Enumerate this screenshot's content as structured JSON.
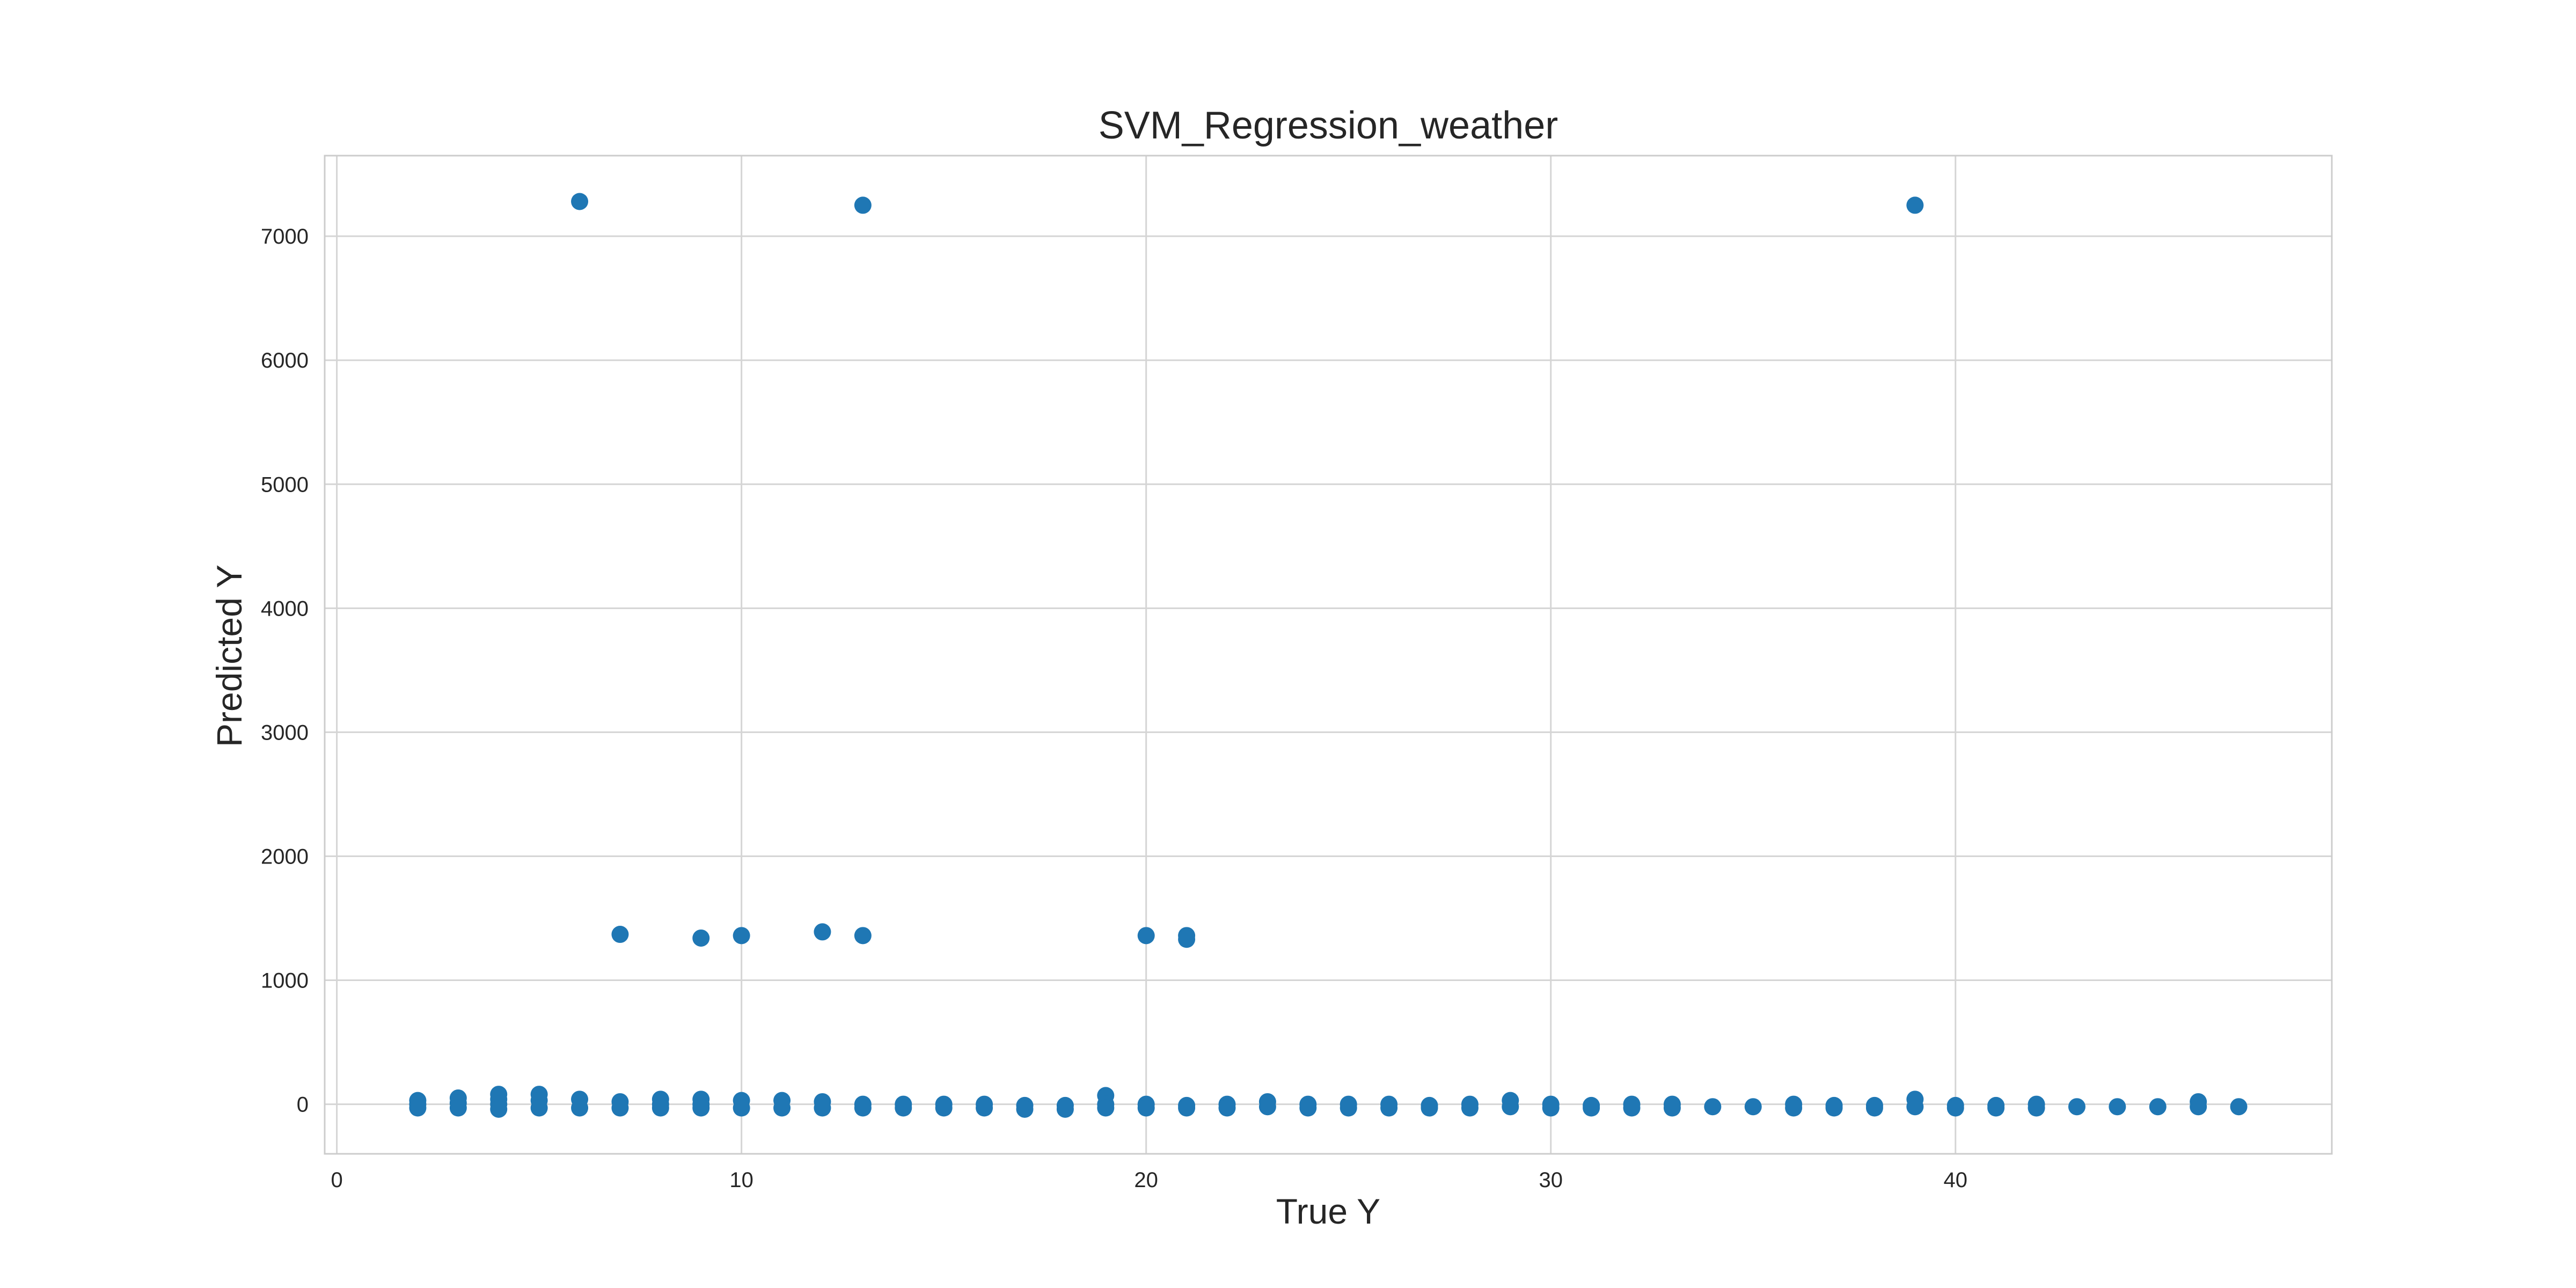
{
  "chart_data": {
    "type": "scatter",
    "title": "SVM_Regression_weather",
    "xlabel": "True Y",
    "ylabel": "Predicted Y",
    "xlim": [
      -0.3,
      49.3
    ],
    "ylim": [
      -400,
      7650
    ],
    "xticks": [
      0,
      10,
      20,
      30,
      40
    ],
    "yticks": [
      0,
      1000,
      2000,
      3000,
      4000,
      5000,
      6000,
      7000
    ],
    "grid": true,
    "colors": {
      "point": "#1f77b4",
      "grid": "#d5d5d5",
      "frame": "#cccccc",
      "text": "#262626"
    },
    "series": [
      {
        "points": [
          [
            2,
            30
          ],
          [
            2,
            0
          ],
          [
            2,
            -30
          ],
          [
            3,
            50
          ],
          [
            3,
            10
          ],
          [
            3,
            -30
          ],
          [
            4,
            80
          ],
          [
            4,
            40
          ],
          [
            4,
            0
          ],
          [
            4,
            -40
          ],
          [
            5,
            80
          ],
          [
            5,
            30
          ],
          [
            5,
            -30
          ],
          [
            6,
            7280
          ],
          [
            6,
            40
          ],
          [
            6,
            -30
          ],
          [
            7,
            1370
          ],
          [
            7,
            20
          ],
          [
            7,
            -30
          ],
          [
            8,
            40
          ],
          [
            8,
            0
          ],
          [
            8,
            -30
          ],
          [
            9,
            1340
          ],
          [
            9,
            40
          ],
          [
            9,
            0
          ],
          [
            9,
            -30
          ],
          [
            10,
            1360
          ],
          [
            10,
            30
          ],
          [
            10,
            -30
          ],
          [
            11,
            30
          ],
          [
            11,
            -30
          ],
          [
            12,
            1390
          ],
          [
            12,
            20
          ],
          [
            12,
            -30
          ],
          [
            13,
            7250
          ],
          [
            13,
            1360
          ],
          [
            13,
            0
          ],
          [
            13,
            -30
          ],
          [
            14,
            0
          ],
          [
            14,
            -30
          ],
          [
            15,
            0
          ],
          [
            15,
            -30
          ],
          [
            16,
            0
          ],
          [
            16,
            -30
          ],
          [
            17,
            -10
          ],
          [
            17,
            -40
          ],
          [
            18,
            -10
          ],
          [
            18,
            -40
          ],
          [
            19,
            70
          ],
          [
            19,
            0
          ],
          [
            19,
            -30
          ],
          [
            20,
            1360
          ],
          [
            20,
            0
          ],
          [
            20,
            -30
          ],
          [
            21,
            1360
          ],
          [
            21,
            1330
          ],
          [
            21,
            -10
          ],
          [
            21,
            -30
          ],
          [
            22,
            0
          ],
          [
            22,
            -30
          ],
          [
            23,
            20
          ],
          [
            23,
            -20
          ],
          [
            24,
            0
          ],
          [
            24,
            -30
          ],
          [
            25,
            0
          ],
          [
            25,
            -30
          ],
          [
            26,
            0
          ],
          [
            26,
            -30
          ],
          [
            27,
            -10
          ],
          [
            27,
            -30
          ],
          [
            28,
            0
          ],
          [
            28,
            -30
          ],
          [
            29,
            30
          ],
          [
            29,
            -20
          ],
          [
            30,
            0
          ],
          [
            30,
            -30
          ],
          [
            31,
            -10
          ],
          [
            31,
            -30
          ],
          [
            32,
            0
          ],
          [
            32,
            -30
          ],
          [
            33,
            0
          ],
          [
            33,
            -30
          ],
          [
            34,
            -20
          ],
          [
            35,
            -20
          ],
          [
            36,
            0
          ],
          [
            36,
            -30
          ],
          [
            37,
            -10
          ],
          [
            37,
            -30
          ],
          [
            38,
            -10
          ],
          [
            38,
            -30
          ],
          [
            39,
            7250
          ],
          [
            39,
            40
          ],
          [
            39,
            -20
          ],
          [
            40,
            -10
          ],
          [
            40,
            -30
          ],
          [
            41,
            -10
          ],
          [
            41,
            -30
          ],
          [
            42,
            0
          ],
          [
            42,
            -30
          ],
          [
            43,
            -20
          ],
          [
            44,
            -20
          ],
          [
            45,
            -20
          ],
          [
            46,
            20
          ],
          [
            46,
            -20
          ],
          [
            47,
            -20
          ]
        ]
      }
    ]
  }
}
